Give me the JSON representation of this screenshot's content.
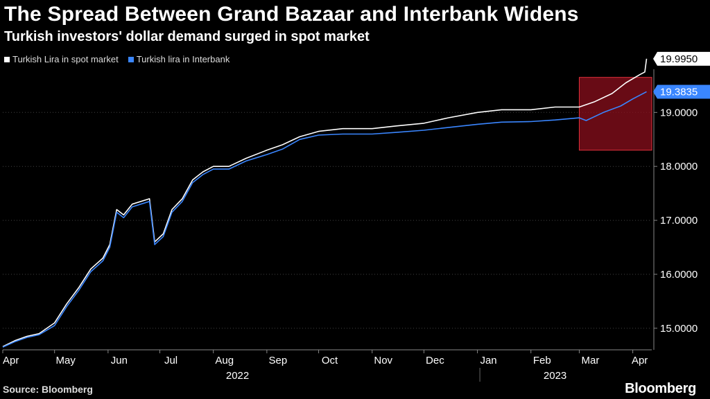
{
  "title": "The Spread Between Grand Bazaar and Interbank Widens",
  "subtitle": "Turkish investors' dollar demand surged in spot market",
  "source": "Source: Bloomberg",
  "logo": "Bloomberg",
  "colors": {
    "spot": "#ffffff",
    "interbank": "#3a86ff",
    "highlight": "#8b0f1c",
    "highlight_border": "#e0303c"
  },
  "chart_data": {
    "type": "line",
    "x_unit": "date",
    "ylim": [
      14.6,
      19.8
    ],
    "y_ticks": [
      15,
      16,
      17,
      18,
      19
    ],
    "y_tick_labels": [
      "15.0000",
      "16.0000",
      "17.0000",
      "18.0000",
      "19.0000"
    ],
    "x_ticks": [
      {
        "label": "Apr",
        "date": "2022-04-01"
      },
      {
        "label": "May",
        "date": "2022-05-01"
      },
      {
        "label": "Jun",
        "date": "2022-06-01"
      },
      {
        "label": "Jul",
        "date": "2022-07-01"
      },
      {
        "label": "Aug",
        "date": "2022-08-01"
      },
      {
        "label": "Sep",
        "date": "2022-09-01"
      },
      {
        "label": "Oct",
        "date": "2022-10-01"
      },
      {
        "label": "Nov",
        "date": "2022-11-01"
      },
      {
        "label": "Dec",
        "date": "2022-12-01"
      },
      {
        "label": "Jan",
        "date": "2023-01-01"
      },
      {
        "label": "Feb",
        "date": "2023-02-01"
      },
      {
        "label": "Mar",
        "date": "2023-03-01"
      },
      {
        "label": "Apr",
        "date": "2023-04-01"
      }
    ],
    "years": [
      {
        "label": "2022",
        "date": "2022-08-15"
      },
      {
        "label": "2023",
        "date": "2023-02-15"
      }
    ],
    "year_divider_date": "2022-12-31",
    "x_range": [
      "2022-04-01",
      "2023-04-12"
    ],
    "highlight": {
      "x_start": "2023-03-01",
      "x_end": "2023-04-12",
      "y_start": 18.3,
      "y_end": 19.65
    },
    "end_labels": [
      {
        "series": "Turkish Lira in spot market",
        "value": "19.9950"
      },
      {
        "series": "Turkish lira in Interbank",
        "value": "19.3835"
      }
    ],
    "series": [
      {
        "name": "Turkish Lira in spot market",
        "points": [
          [
            "2022-04-01",
            14.66
          ],
          [
            "2022-04-08",
            14.77
          ],
          [
            "2022-04-15",
            14.85
          ],
          [
            "2022-04-22",
            14.9
          ],
          [
            "2022-05-01",
            15.1
          ],
          [
            "2022-05-08",
            15.45
          ],
          [
            "2022-05-15",
            15.75
          ],
          [
            "2022-05-22",
            16.1
          ],
          [
            "2022-05-29",
            16.3
          ],
          [
            "2022-06-02",
            16.55
          ],
          [
            "2022-06-06",
            17.2
          ],
          [
            "2022-06-10",
            17.1
          ],
          [
            "2022-06-15",
            17.3
          ],
          [
            "2022-06-20",
            17.35
          ],
          [
            "2022-06-25",
            17.4
          ],
          [
            "2022-06-28",
            16.6
          ],
          [
            "2022-07-03",
            16.75
          ],
          [
            "2022-07-08",
            17.2
          ],
          [
            "2022-07-14",
            17.4
          ],
          [
            "2022-07-20",
            17.75
          ],
          [
            "2022-07-26",
            17.9
          ],
          [
            "2022-08-01",
            18.0
          ],
          [
            "2022-08-10",
            18.0
          ],
          [
            "2022-08-20",
            18.15
          ],
          [
            "2022-09-01",
            18.3
          ],
          [
            "2022-09-10",
            18.4
          ],
          [
            "2022-09-20",
            18.55
          ],
          [
            "2022-10-01",
            18.65
          ],
          [
            "2022-10-15",
            18.7
          ],
          [
            "2022-11-01",
            18.7
          ],
          [
            "2022-11-15",
            18.75
          ],
          [
            "2022-12-01",
            18.8
          ],
          [
            "2022-12-15",
            18.9
          ],
          [
            "2023-01-01",
            19.0
          ],
          [
            "2023-01-15",
            19.05
          ],
          [
            "2023-02-01",
            19.05
          ],
          [
            "2023-02-15",
            19.1
          ],
          [
            "2023-03-01",
            19.1
          ],
          [
            "2023-03-10",
            19.2
          ],
          [
            "2023-03-20",
            19.35
          ],
          [
            "2023-03-28",
            19.55
          ],
          [
            "2023-04-05",
            19.7
          ],
          [
            "2023-04-08",
            19.75
          ],
          [
            "2023-04-09",
            19.995
          ]
        ]
      },
      {
        "name": "Turkish lira in Interbank",
        "points": [
          [
            "2022-04-01",
            14.65
          ],
          [
            "2022-04-08",
            14.75
          ],
          [
            "2022-04-15",
            14.83
          ],
          [
            "2022-04-22",
            14.88
          ],
          [
            "2022-05-01",
            15.05
          ],
          [
            "2022-05-08",
            15.4
          ],
          [
            "2022-05-15",
            15.7
          ],
          [
            "2022-05-22",
            16.05
          ],
          [
            "2022-05-29",
            16.25
          ],
          [
            "2022-06-02",
            16.5
          ],
          [
            "2022-06-06",
            17.15
          ],
          [
            "2022-06-10",
            17.05
          ],
          [
            "2022-06-15",
            17.25
          ],
          [
            "2022-06-20",
            17.3
          ],
          [
            "2022-06-25",
            17.35
          ],
          [
            "2022-06-28",
            16.55
          ],
          [
            "2022-07-03",
            16.7
          ],
          [
            "2022-07-08",
            17.15
          ],
          [
            "2022-07-14",
            17.35
          ],
          [
            "2022-07-20",
            17.7
          ],
          [
            "2022-07-26",
            17.85
          ],
          [
            "2022-08-01",
            17.95
          ],
          [
            "2022-08-10",
            17.95
          ],
          [
            "2022-08-20",
            18.1
          ],
          [
            "2022-09-01",
            18.22
          ],
          [
            "2022-09-10",
            18.32
          ],
          [
            "2022-09-20",
            18.5
          ],
          [
            "2022-10-01",
            18.58
          ],
          [
            "2022-10-15",
            18.6
          ],
          [
            "2022-11-01",
            18.6
          ],
          [
            "2022-11-15",
            18.63
          ],
          [
            "2022-12-01",
            18.67
          ],
          [
            "2022-12-15",
            18.72
          ],
          [
            "2023-01-01",
            18.78
          ],
          [
            "2023-01-15",
            18.82
          ],
          [
            "2023-02-01",
            18.83
          ],
          [
            "2023-02-15",
            18.86
          ],
          [
            "2023-03-01",
            18.9
          ],
          [
            "2023-03-05",
            18.85
          ],
          [
            "2023-03-15",
            19.0
          ],
          [
            "2023-03-25",
            19.12
          ],
          [
            "2023-04-01",
            19.25
          ],
          [
            "2023-04-09",
            19.3835
          ]
        ]
      }
    ]
  }
}
